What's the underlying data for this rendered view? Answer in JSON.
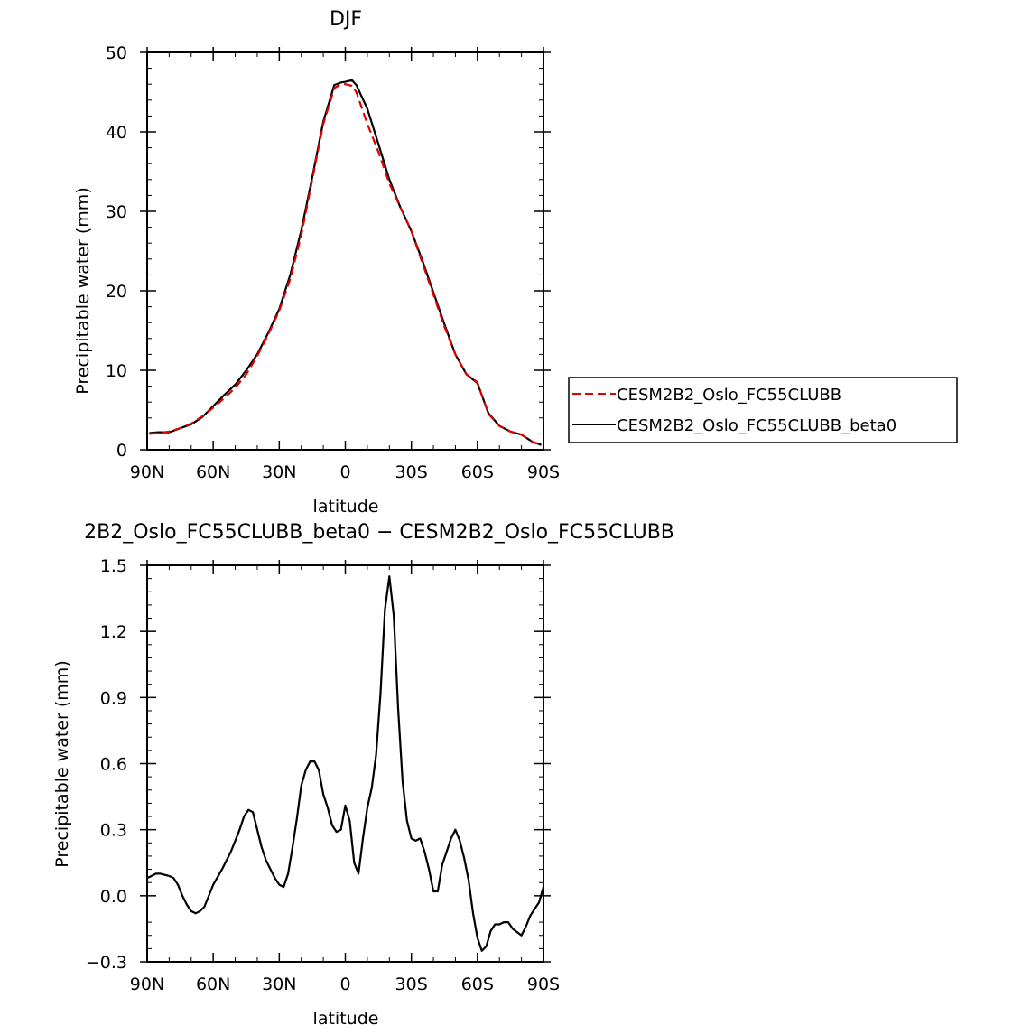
{
  "chart_data": [
    {
      "type": "line",
      "title": "DJF",
      "xlabel": "latitude",
      "ylabel": "Precipitable water (mm)",
      "xlim": [
        90,
        -90
      ],
      "ylim": [
        0,
        50
      ],
      "x_ticks": [
        90,
        60,
        30,
        0,
        -30,
        -60,
        -90
      ],
      "x_tick_labels": [
        "90N",
        "60N",
        "30N",
        "0",
        "30S",
        "60S",
        "90S"
      ],
      "y_ticks": [
        0,
        10,
        20,
        30,
        40,
        50
      ],
      "y_tick_labels": [
        "0",
        "10",
        "20",
        "30",
        "40",
        "50"
      ],
      "legend_position": "right",
      "grid": false,
      "series": [
        {
          "name": "CESM2B2_Oslo_FC55CLUBB",
          "color": "#e00000",
          "dash": "dashed",
          "x": [
            89,
            85,
            80,
            75,
            70,
            65,
            60,
            55,
            50,
            45,
            40,
            35,
            30,
            25,
            20,
            15,
            10,
            5,
            2,
            0,
            -3,
            -5,
            -10,
            -15,
            -20,
            -25,
            -30,
            -35,
            -40,
            -45,
            -50,
            -55,
            -60,
            -65,
            -70,
            -75,
            -80,
            -85,
            -89
          ],
          "y": [
            2.0,
            2.1,
            2.3,
            2.7,
            3.3,
            4.2,
            5.3,
            6.5,
            7.8,
            9.5,
            11.8,
            14.5,
            17.5,
            21.5,
            27.0,
            34.0,
            41.0,
            45.5,
            46.0,
            46.0,
            45.8,
            45.0,
            41.0,
            37.5,
            33.5,
            30.5,
            27.5,
            23.5,
            19.5,
            15.5,
            12.0,
            9.5,
            8.5,
            4.5,
            3.0,
            2.3,
            1.9,
            1.0,
            0.6
          ]
        },
        {
          "name": "CESM2B2_Oslo_FC55CLUBB_beta0",
          "color": "#000000",
          "dash": "solid",
          "x": [
            89,
            85,
            80,
            75,
            70,
            65,
            60,
            55,
            50,
            45,
            40,
            35,
            30,
            25,
            20,
            15,
            10,
            5,
            2,
            0,
            -3,
            -5,
            -10,
            -15,
            -20,
            -25,
            -30,
            -35,
            -40,
            -45,
            -50,
            -55,
            -60,
            -65,
            -70,
            -75,
            -80,
            -85,
            -89
          ],
          "y": [
            2.1,
            2.2,
            2.2,
            2.7,
            3.2,
            4.1,
            5.5,
            6.9,
            8.2,
            10.0,
            12.0,
            14.7,
            17.7,
            22.0,
            27.6,
            34.3,
            41.3,
            45.9,
            46.2,
            46.3,
            46.5,
            45.9,
            42.9,
            38.5,
            34.0,
            30.5,
            27.5,
            23.8,
            19.8,
            15.8,
            12.0,
            9.5,
            8.4,
            4.6,
            3.0,
            2.3,
            1.9,
            1.0,
            0.6
          ]
        }
      ]
    },
    {
      "type": "line",
      "title": "2B2_Oslo_FC55CLUBB_beta0 − CESM2B2_Oslo_FC55CLUBB",
      "xlabel": "latitude",
      "ylabel": "Precipitable water (mm)",
      "xlim": [
        90,
        -90
      ],
      "ylim": [
        -0.3,
        1.5
      ],
      "x_ticks": [
        90,
        60,
        30,
        0,
        -30,
        -60,
        -90
      ],
      "x_tick_labels": [
        "90N",
        "60N",
        "30N",
        "0",
        "30S",
        "60S",
        "90S"
      ],
      "y_ticks": [
        -0.3,
        0.0,
        0.3,
        0.6,
        0.9,
        1.2,
        1.5
      ],
      "y_tick_labels": [
        "−0.3",
        "0.0",
        "0.3",
        "0.6",
        "0.9",
        "1.2",
        "1.5"
      ],
      "grid": false,
      "series": [
        {
          "color": "#000000",
          "dash": "solid",
          "x": [
            90,
            88,
            86,
            84,
            80,
            78,
            76,
            74,
            72,
            70,
            68,
            66,
            64,
            60,
            56,
            52,
            50,
            48,
            46,
            44,
            42,
            38,
            36,
            34,
            32,
            30,
            28,
            26,
            24,
            22,
            20,
            18,
            16,
            14,
            12,
            10,
            8,
            6,
            4,
            2,
            0,
            -2,
            -4,
            -6,
            -8,
            -10,
            -12,
            -14,
            -16,
            -18,
            -20,
            -22,
            -24,
            -26,
            -28,
            -30,
            -32,
            -34,
            -36,
            -38,
            -40,
            -42,
            -44,
            -46,
            -48,
            -50,
            -52,
            -54,
            -56,
            -58,
            -60,
            -62,
            -64,
            -66,
            -68,
            -70,
            -72,
            -74,
            -76,
            -80,
            -82,
            -84,
            -86,
            -88,
            -90
          ],
          "y": [
            0.08,
            0.09,
            0.1,
            0.1,
            0.09,
            0.08,
            0.05,
            0.0,
            -0.04,
            -0.07,
            -0.08,
            -0.07,
            -0.05,
            0.05,
            0.12,
            0.2,
            0.25,
            0.3,
            0.36,
            0.39,
            0.38,
            0.22,
            0.16,
            0.12,
            0.08,
            0.05,
            0.04,
            0.1,
            0.22,
            0.35,
            0.5,
            0.57,
            0.61,
            0.61,
            0.57,
            0.46,
            0.4,
            0.32,
            0.29,
            0.3,
            0.41,
            0.34,
            0.15,
            0.1,
            0.26,
            0.4,
            0.49,
            0.64,
            0.92,
            1.3,
            1.45,
            1.27,
            0.85,
            0.52,
            0.34,
            0.26,
            0.25,
            0.26,
            0.2,
            0.12,
            0.02,
            0.02,
            0.14,
            0.2,
            0.26,
            0.3,
            0.25,
            0.17,
            0.07,
            -0.08,
            -0.19,
            -0.25,
            -0.23,
            -0.16,
            -0.13,
            -0.13,
            -0.12,
            -0.12,
            -0.15,
            -0.18,
            -0.14,
            -0.09,
            -0.06,
            -0.03,
            0.04
          ]
        }
      ]
    }
  ]
}
